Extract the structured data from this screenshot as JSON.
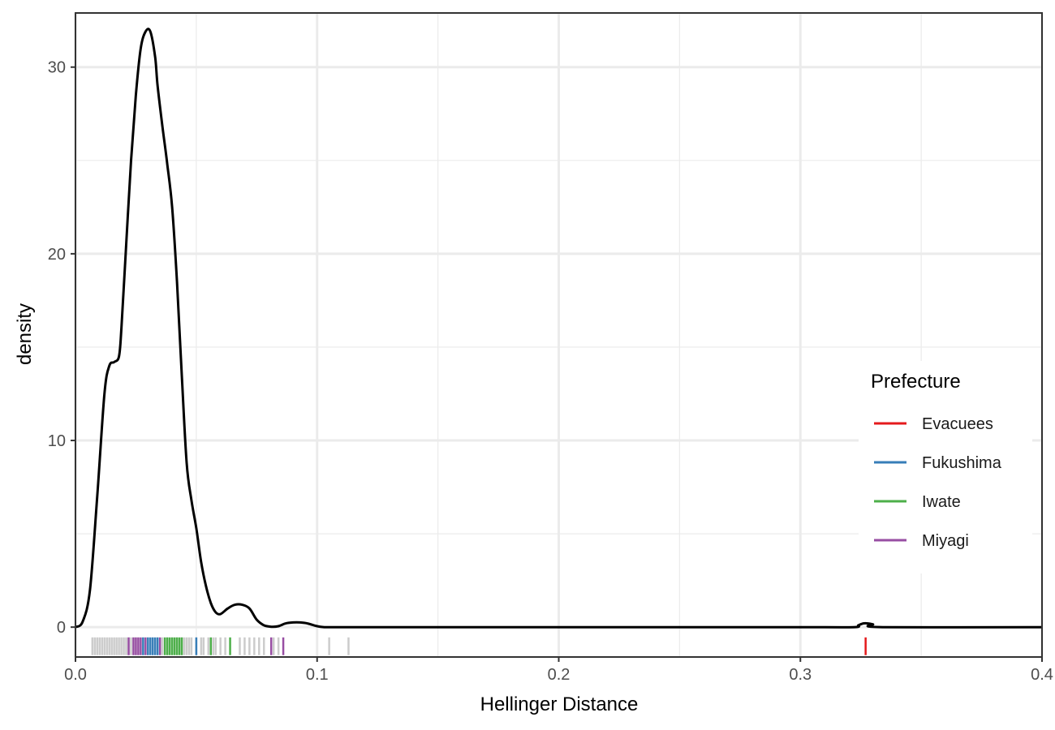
{
  "chart_data": {
    "type": "area",
    "title": "",
    "xlabel": "Hellinger Distance",
    "ylabel": "density",
    "xlim": [
      0.0,
      0.4
    ],
    "ylim": [
      -1.6,
      32.9
    ],
    "x_ticks": [
      0.0,
      0.1,
      0.2,
      0.3,
      0.4
    ],
    "x_tick_labels": [
      "0.0",
      "0.1",
      "0.2",
      "0.3",
      "0.4"
    ],
    "y_ticks": [
      0,
      10,
      20,
      30
    ],
    "y_tick_labels": [
      "0",
      "10",
      "20",
      "30"
    ],
    "grid": true,
    "legend": {
      "title": "Prefecture",
      "position": "right",
      "entries": [
        {
          "label": "Evacuees",
          "color": "#e41a1c"
        },
        {
          "label": "Fukushima",
          "color": "#377eb8"
        },
        {
          "label": "Iwate",
          "color": "#4daf4a"
        },
        {
          "label": "Miyagi",
          "color": "#984ea3"
        }
      ]
    },
    "density_curve": {
      "color": "#000000",
      "x": [
        0.0,
        0.003,
        0.006,
        0.009,
        0.012,
        0.014,
        0.016,
        0.018,
        0.019,
        0.021,
        0.023,
        0.025,
        0.027,
        0.029,
        0.031,
        0.033,
        0.034,
        0.036,
        0.038,
        0.04,
        0.042,
        0.044,
        0.046,
        0.048,
        0.05,
        0.052,
        0.054,
        0.056,
        0.058,
        0.06,
        0.063,
        0.066,
        0.069,
        0.072,
        0.075,
        0.078,
        0.081,
        0.084,
        0.087,
        0.09,
        0.093,
        0.096,
        0.1,
        0.103,
        0.106,
        0.11,
        0.114,
        0.118,
        0.125,
        0.2,
        0.3,
        0.322,
        0.324,
        0.326,
        0.328,
        0.33,
        0.334,
        0.4
      ],
      "y": [
        0.0,
        0.3,
        2.0,
        7.0,
        12.5,
        14.0,
        14.2,
        14.5,
        16.0,
        20.5,
        25.0,
        28.5,
        31.0,
        31.9,
        31.9,
        30.5,
        29.0,
        26.8,
        24.8,
        22.5,
        18.5,
        13.5,
        8.8,
        6.8,
        5.3,
        3.5,
        2.2,
        1.3,
        0.8,
        0.7,
        1.0,
        1.2,
        1.2,
        1.0,
        0.4,
        0.1,
        0.02,
        0.05,
        0.2,
        0.25,
        0.25,
        0.2,
        0.05,
        0.0,
        0.0,
        0.0,
        0.0,
        0.0,
        0.0,
        0.0,
        0.0,
        0.0,
        0.1,
        0.2,
        0.2,
        0.15,
        0.0,
        0.0
      ]
    },
    "rug": {
      "other_color": "#cccccc",
      "other": [
        0.007,
        0.008,
        0.009,
        0.01,
        0.011,
        0.012,
        0.013,
        0.014,
        0.015,
        0.016,
        0.017,
        0.018,
        0.019,
        0.02,
        0.021,
        0.022,
        0.023,
        0.024,
        0.025,
        0.026,
        0.028,
        0.03,
        0.032,
        0.034,
        0.036,
        0.038,
        0.04,
        0.042,
        0.044,
        0.045,
        0.046,
        0.047,
        0.048,
        0.05,
        0.052,
        0.053,
        0.055,
        0.057,
        0.058,
        0.06,
        0.062,
        0.068,
        0.07,
        0.072,
        0.074,
        0.076,
        0.078,
        0.082,
        0.084,
        0.105,
        0.113
      ],
      "Evacuees": [
        0.327
      ],
      "Fukushima": [
        0.028,
        0.03,
        0.031,
        0.032,
        0.033,
        0.034,
        0.05
      ],
      "Iwate": [
        0.037,
        0.038,
        0.039,
        0.04,
        0.041,
        0.042,
        0.043,
        0.044,
        0.056,
        0.064
      ],
      "Miyagi": [
        0.022,
        0.024,
        0.025,
        0.026,
        0.027,
        0.029,
        0.035,
        0.081,
        0.086
      ]
    }
  }
}
